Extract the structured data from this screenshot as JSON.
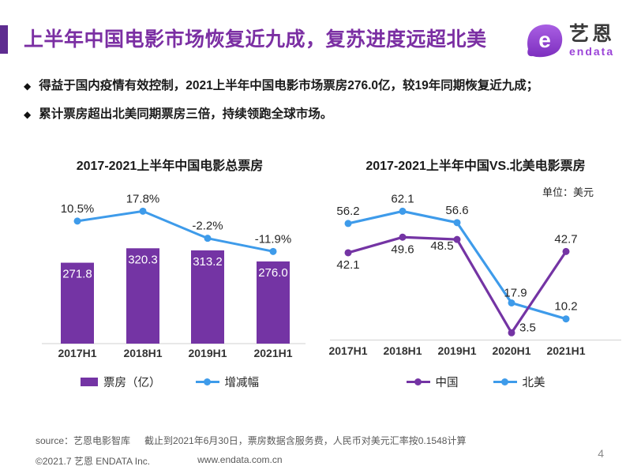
{
  "header": {
    "title": "上半年中国电影市场恢复近九成，复苏进度远超北美",
    "logo": {
      "glyph": "e",
      "name": "艺恩",
      "subtitle": "endata"
    }
  },
  "bullets": [
    {
      "marker": "◆",
      "text": "得益于国内疫情有效控制，2021上半年中国电影市场票房276.0亿，较19年同期恢复近九成；"
    },
    {
      "marker": "◆",
      "text": "累计票房超出北美同期票房三倍，持续领跑全球市场。"
    }
  ],
  "colors": {
    "purple": "#7434A4",
    "blue": "#3E9BEA",
    "title_purple": "#7B2FA3",
    "accent_bar": "#5E2C90",
    "logo_purple": "#9B43D8",
    "axis_line": "#D9D9D9",
    "text_dark": "#262626",
    "footer_gray": "#595959"
  },
  "chart_data": [
    {
      "type": "bar",
      "title": "2017-2021上半年中国电影总票房",
      "categories": [
        "2017H1",
        "2018H1",
        "2019H1",
        "2021H1"
      ],
      "series": [
        {
          "name": "票房（亿）",
          "kind": "bar",
          "color": "#7434A4",
          "values": [
            271.8,
            320.3,
            313.2,
            276.0
          ],
          "labels": [
            "271.8",
            "320.3",
            "313.2",
            "276.0"
          ]
        },
        {
          "name": "增减幅",
          "kind": "line",
          "color": "#3E9BEA",
          "values": [
            10.5,
            17.8,
            -2.2,
            -11.9
          ],
          "labels": [
            "10.5%",
            "17.8%",
            "-2.2%",
            "-11.9%"
          ]
        }
      ],
      "legend_position": "bottom",
      "grid": false,
      "y_axis": "hidden",
      "data_labels": true
    },
    {
      "type": "line",
      "title": "2017-2021上半年中国VS.北美电影票房",
      "unit_label": "单位：美元",
      "categories": [
        "2017H1",
        "2018H1",
        "2019H1",
        "2020H1",
        "2021H1"
      ],
      "series": [
        {
          "name": "中国",
          "color": "#7434A4",
          "values": [
            42.1,
            49.6,
            48.5,
            3.5,
            42.7
          ],
          "labels": [
            "42.1",
            "49.6",
            "48.5",
            "3.5",
            "42.7"
          ],
          "label_pos": [
            "below",
            "below",
            "below_left",
            "right",
            "above"
          ]
        },
        {
          "name": "北美",
          "color": "#3E9BEA",
          "values": [
            56.2,
            62.1,
            56.6,
            17.9,
            10.2
          ],
          "labels": [
            "56.2",
            "62.1",
            "56.6",
            "17.9",
            "10.2"
          ],
          "label_pos": [
            "above",
            "above",
            "above",
            "above_right",
            "above"
          ]
        }
      ],
      "legend_position": "bottom",
      "grid": false,
      "y_axis": "hidden",
      "ylim": [
        0,
        70
      ],
      "data_labels": true
    }
  ],
  "footer": {
    "source": "source：艺恩电影智库",
    "note": "截止到2021年6月30日，票房数据含服务费，人民币对美元汇率按0.1548计算",
    "copyright": "©2021.7 艺恩 ENDATA Inc.",
    "website": "www.endata.com.cn",
    "page_number": "4"
  }
}
